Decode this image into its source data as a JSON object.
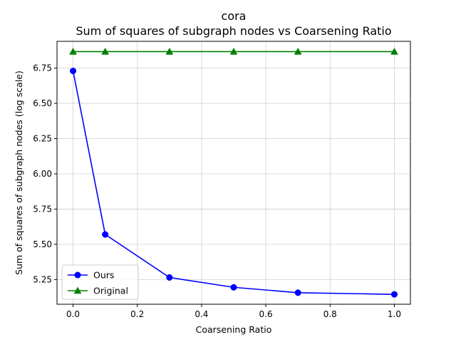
{
  "chart_data": {
    "type": "line",
    "title": "cora",
    "subtitle": "Sum of squares of subgraph nodes vs Coarsening Ratio",
    "xlabel": "Coarsening Ratio",
    "ylabel": "Sum of squares of subgraph nodes (log scale)",
    "xlim": [
      -0.05,
      1.05
    ],
    "ylim": [
      5.075,
      6.94
    ],
    "xticks": [
      0.0,
      0.2,
      0.4,
      0.6,
      0.8,
      1.0
    ],
    "xtick_labels": [
      "0.0",
      "0.2",
      "0.4",
      "0.6",
      "0.8",
      "1.0"
    ],
    "yticks": [
      5.25,
      5.5,
      5.75,
      6.0,
      6.25,
      6.5,
      6.75
    ],
    "ytick_labels": [
      "5.25",
      "5.50",
      "5.75",
      "6.00",
      "6.25",
      "6.50",
      "6.75"
    ],
    "grid": true,
    "legend": "lower-left",
    "series": [
      {
        "name": "Ours",
        "color": "#0000ff",
        "marker": "circle",
        "x": [
          0.0,
          0.1,
          0.3,
          0.5,
          0.7,
          1.0
        ],
        "y": [
          6.73,
          5.57,
          5.265,
          5.195,
          5.157,
          5.145
        ]
      },
      {
        "name": "Original",
        "color": "#008000",
        "marker": "triangle",
        "x": [
          0.0,
          0.1,
          0.3,
          0.5,
          0.7,
          1.0
        ],
        "y": [
          6.867,
          6.867,
          6.867,
          6.867,
          6.867,
          6.867
        ]
      }
    ]
  }
}
